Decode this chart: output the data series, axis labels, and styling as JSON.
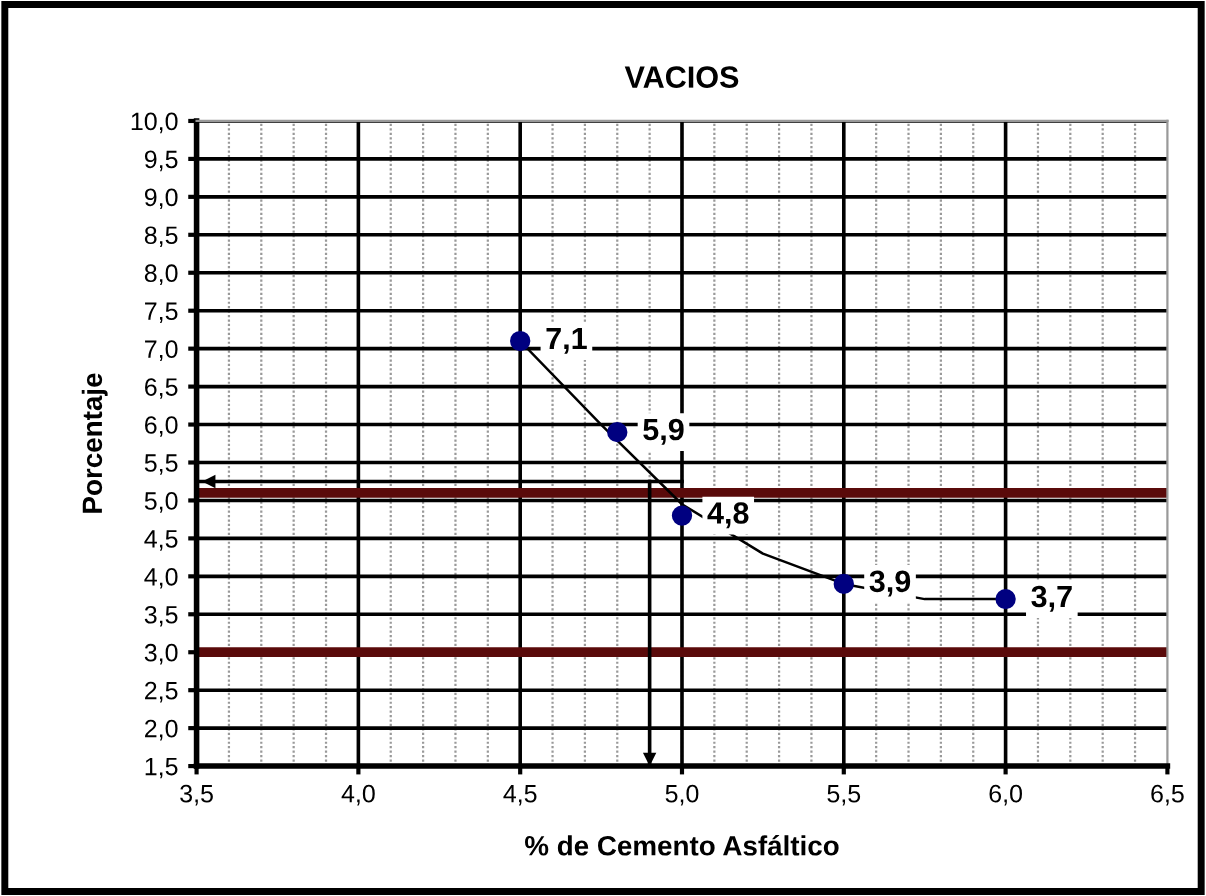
{
  "chart_data": {
    "type": "scatter",
    "title": "VACIOS",
    "xlabel": "% de Cemento Asfáltico",
    "ylabel": "Porcentaje",
    "x": [
      4.5,
      4.8,
      5.0,
      5.5,
      6.0
    ],
    "series": [
      {
        "color": "#000080",
        "values": [
          7.1,
          5.9,
          4.8,
          3.9,
          3.7
        ],
        "value_labels": [
          "7,1",
          "5,9",
          "4,8",
          "3,9",
          "3,7"
        ]
      },
      {
        "type": "line",
        "marker": "none",
        "color": "#000000",
        "x": [
          4.5,
          4.75,
          5.0,
          5.25,
          5.5,
          5.75,
          6.0
        ],
        "values": [
          7.1,
          6.0,
          4.95,
          4.3,
          3.9,
          3.7,
          3.7
        ]
      },
      {
        "type": "line",
        "marker": "none",
        "color": "#000000",
        "x": [
          5.0,
          3.5
        ],
        "values": [
          5.25,
          5.25
        ]
      },
      {
        "type": "line",
        "marker": "none",
        "color": "#000000",
        "x": [
          4.9,
          4.9
        ],
        "values": [
          5.25,
          1.5
        ]
      }
    ],
    "ref_lines": [
      {
        "axis": "y",
        "value": 5.1,
        "color": "#5a0a0a"
      },
      {
        "axis": "y",
        "value": 3.0,
        "color": "#5a0a0a"
      }
    ],
    "xlim": [
      3.5,
      6.5
    ],
    "ylim": [
      1.5,
      10.0
    ],
    "xticks": [
      {
        "value": 3.5,
        "label": "3,5"
      },
      {
        "value": 4.0,
        "label": "4,0"
      },
      {
        "value": 4.5,
        "label": "4,5"
      },
      {
        "value": 5.0,
        "label": "5,0"
      },
      {
        "value": 5.5,
        "label": "5,5"
      },
      {
        "value": 6.0,
        "label": "6,0"
      },
      {
        "value": 6.5,
        "label": "6,5"
      }
    ],
    "yticks": [
      {
        "value": 1.5,
        "label": "1,5"
      },
      {
        "value": 2.0,
        "label": "2,0"
      },
      {
        "value": 2.5,
        "label": "2,5"
      },
      {
        "value": 3.0,
        "label": "3,0"
      },
      {
        "value": 3.5,
        "label": "3,5"
      },
      {
        "value": 4.0,
        "label": "4,0"
      },
      {
        "value": 4.5,
        "label": "4,5"
      },
      {
        "value": 5.0,
        "label": "5,0"
      },
      {
        "value": 5.5,
        "label": "5,5"
      },
      {
        "value": 6.0,
        "label": "6,0"
      },
      {
        "value": 6.5,
        "label": "6,5"
      },
      {
        "value": 7.0,
        "label": "7,0"
      },
      {
        "value": 7.5,
        "label": "7,5"
      },
      {
        "value": 8.0,
        "label": "8,0"
      },
      {
        "value": 8.5,
        "label": "8,5"
      },
      {
        "value": 9.0,
        "label": "9,0"
      },
      {
        "value": 9.5,
        "label": "9,5"
      },
      {
        "value": 10.0,
        "label": "10,0"
      }
    ],
    "grid": true,
    "marker": "circle"
  }
}
